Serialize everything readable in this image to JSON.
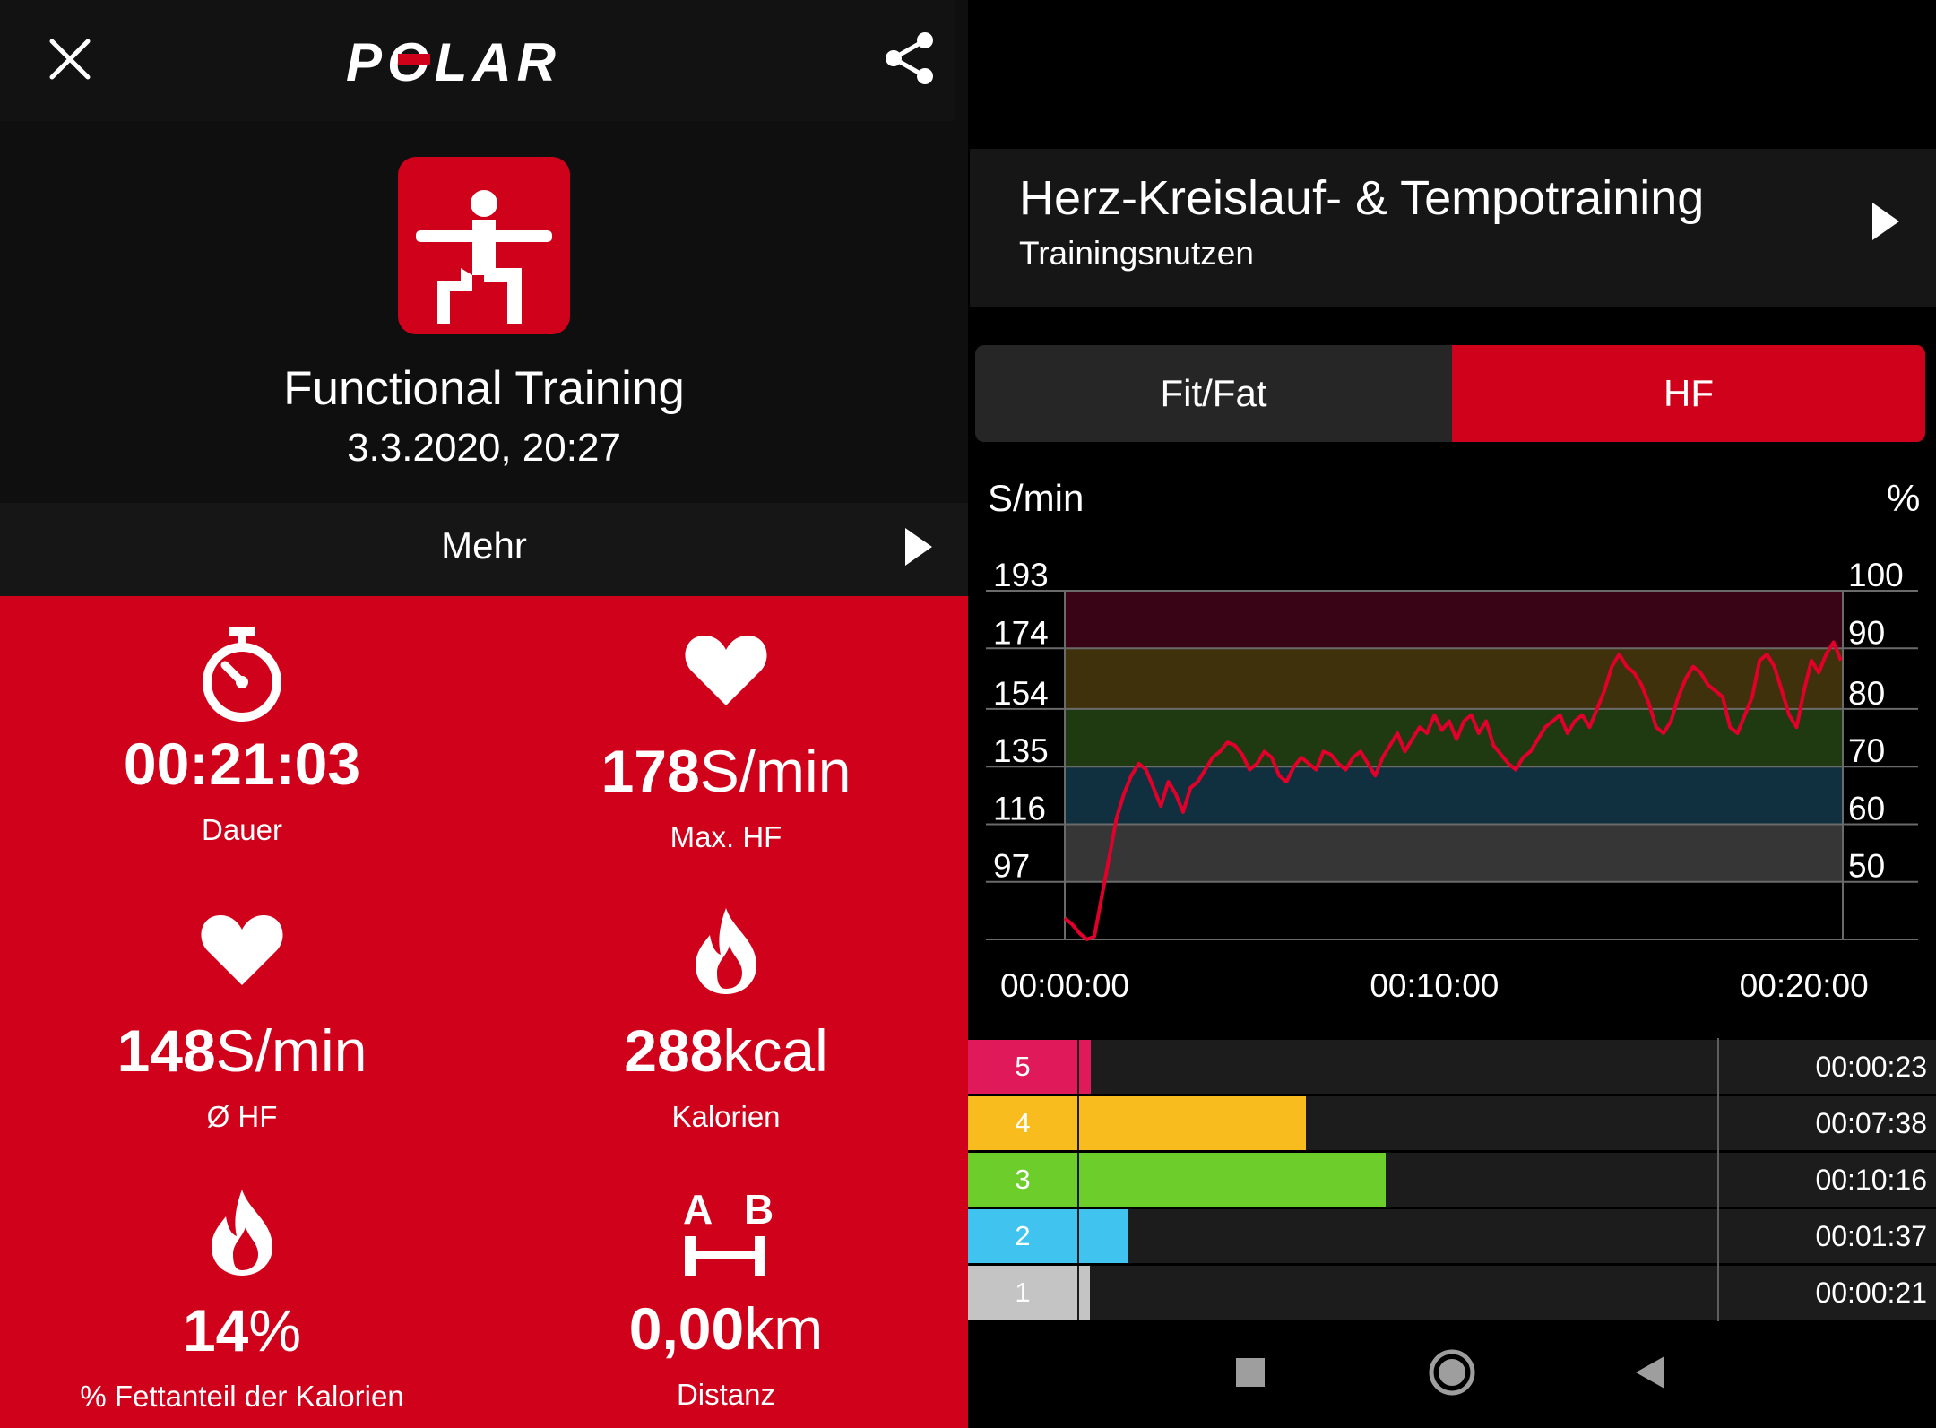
{
  "header": {
    "brand_logo": "POLAR",
    "close_icon": "close-icon",
    "share_icon": "share-icon"
  },
  "session": {
    "sport_icon": "functional-training-icon",
    "title": "Functional Training",
    "date": "3.3.2020, 20:27",
    "more_label": "Mehr"
  },
  "stats": [
    {
      "icon": "stopwatch-icon",
      "value": "00:21:03",
      "unit": "",
      "label": "Dauer"
    },
    {
      "icon": "heart-icon",
      "value": "178",
      "unit": "S/min",
      "label": "Max. HF"
    },
    {
      "icon": "heart-icon",
      "value": "148",
      "unit": "S/min",
      "label": "Ø HF"
    },
    {
      "icon": "flame-icon",
      "value": "288",
      "unit": "kcal",
      "label": "Kalorien"
    },
    {
      "icon": "flame-icon",
      "value": "14",
      "unit": "%",
      "label": "% Fettanteil der Kalorien"
    },
    {
      "icon": "distance-ab-icon",
      "value": "0,00",
      "unit": "km",
      "label": "Distanz"
    }
  ],
  "distance_icon_letters": {
    "a": "A",
    "b": "B"
  },
  "training_benefit": {
    "title": "Herz-Kreislauf- & Tempotraining",
    "subtitle": "Trainingsnutzen"
  },
  "tabs": [
    {
      "label": "Fit/Fat",
      "active": false
    },
    {
      "label": "HF",
      "active": true
    }
  ],
  "colors": {
    "accent": "#d0021b",
    "zone5": "#e0195a",
    "zone4": "#f8bc1e",
    "zone3": "#6ccd2b",
    "zone2": "#41c3ef",
    "zone1": "#c4c4c4",
    "band5": "#3a0417",
    "band4": "#3f310b",
    "band3": "#1f3a10",
    "band2": "#10303f",
    "band1": "#363636"
  },
  "chart_data": {
    "type": "line",
    "y_unit_left": "S/min",
    "y_unit_right": "%",
    "y_ticks_left": [
      "193",
      "174",
      "154",
      "135",
      "116",
      "97"
    ],
    "y_ticks_right": [
      "100",
      "90",
      "80",
      "70",
      "60",
      "50"
    ],
    "x_ticks": [
      "00:00:00",
      "00:10:00",
      "00:20:00"
    ],
    "ylim": [
      78,
      193
    ],
    "xlim_minutes": [
      0,
      21.05
    ],
    "zone_bounds_bpm": [
      97,
      116,
      135,
      154,
      174,
      193
    ],
    "series": [
      {
        "x_minutes": [
          0.0,
          0.2,
          0.4,
          0.6,
          0.8,
          1.0,
          1.2,
          1.4,
          1.6,
          1.8,
          2.0,
          2.2,
          2.4,
          2.6,
          2.8,
          3.0,
          3.2,
          3.4,
          3.6,
          3.8,
          4.0,
          4.2,
          4.4,
          4.6,
          4.8,
          5.0,
          5.2,
          5.4,
          5.6,
          5.8,
          6.0,
          6.2,
          6.4,
          6.6,
          6.8,
          7.0,
          7.2,
          7.4,
          7.6,
          7.8,
          8.0,
          8.2,
          8.4,
          8.6,
          8.8,
          9.0,
          9.2,
          9.4,
          9.6,
          9.8,
          10.0,
          10.2,
          10.4,
          10.6,
          10.8,
          11.0,
          11.2,
          11.4,
          11.6,
          11.8,
          12.0,
          12.2,
          12.4,
          12.6,
          12.8,
          13.0,
          13.2,
          13.4,
          13.6,
          13.8,
          14.0,
          14.2,
          14.4,
          14.6,
          14.8,
          15.0,
          15.2,
          15.4,
          15.6,
          15.8,
          16.0,
          16.2,
          16.4,
          16.6,
          16.8,
          17.0,
          17.2,
          17.4,
          17.6,
          17.8,
          18.0,
          18.2,
          18.4,
          18.6,
          18.8,
          19.0,
          19.2,
          19.4,
          19.6,
          19.8,
          20.0,
          20.2,
          20.4,
          20.6,
          20.8,
          21.0
        ],
        "y": [
          85,
          83,
          80,
          78,
          79,
          92,
          105,
          118,
          126,
          132,
          136,
          134,
          128,
          122,
          130,
          126,
          120,
          128,
          130,
          134,
          138,
          140,
          143,
          142,
          139,
          134,
          136,
          140,
          138,
          132,
          130,
          135,
          138,
          136,
          134,
          140,
          139,
          136,
          134,
          138,
          140,
          136,
          132,
          138,
          142,
          146,
          140,
          144,
          148,
          146,
          152,
          147,
          150,
          144,
          150,
          152,
          146,
          150,
          142,
          139,
          136,
          134,
          138,
          140,
          144,
          148,
          150,
          152,
          146,
          150,
          152,
          148,
          154,
          160,
          168,
          172,
          168,
          166,
          162,
          156,
          148,
          146,
          150,
          158,
          164,
          168,
          166,
          162,
          160,
          158,
          148,
          146,
          152,
          158,
          170,
          172,
          168,
          160,
          152,
          148,
          160,
          170,
          166,
          172,
          176,
          170
        ]
      }
    ]
  },
  "zones": [
    {
      "zone": "5",
      "time": "00:00:23",
      "fraction": 0.018
    },
    {
      "zone": "4",
      "time": "00:07:38",
      "fraction": 0.362
    },
    {
      "zone": "3",
      "time": "00:10:16",
      "fraction": 0.488
    },
    {
      "zone": "2",
      "time": "00:01:37",
      "fraction": 0.077
    },
    {
      "zone": "1",
      "time": "00:00:21",
      "fraction": 0.017
    }
  ],
  "navbar": {
    "recents_icon": "square-icon",
    "home_icon": "circle-icon",
    "back_icon": "back-triangle-icon"
  }
}
